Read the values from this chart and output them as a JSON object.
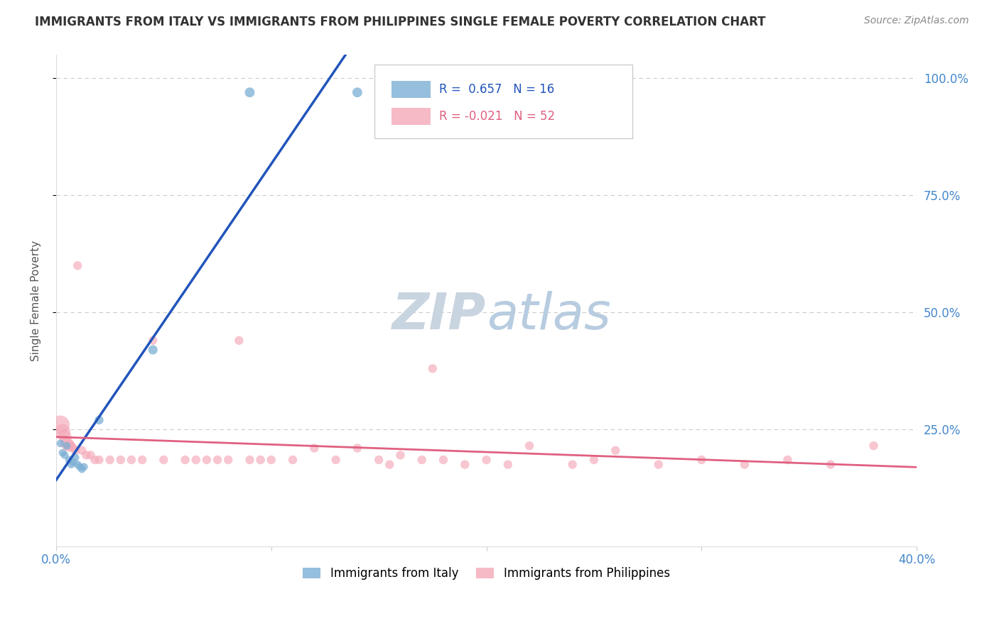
{
  "title": "IMMIGRANTS FROM ITALY VS IMMIGRANTS FROM PHILIPPINES SINGLE FEMALE POVERTY CORRELATION CHART",
  "source": "Source: ZipAtlas.com",
  "ylabel": "Single Female Poverty",
  "italy_color": "#7bafd4",
  "philippines_color": "#f4a8b8",
  "italy_line_color": "#2255bb",
  "philippines_line_color": "#e06080",
  "italy_scatter": [
    [
      0.002,
      0.22
    ],
    [
      0.003,
      0.2
    ],
    [
      0.004,
      0.195
    ],
    [
      0.005,
      0.215
    ],
    [
      0.006,
      0.185
    ],
    [
      0.007,
      0.175
    ],
    [
      0.008,
      0.18
    ],
    [
      0.009,
      0.19
    ],
    [
      0.01,
      0.175
    ],
    [
      0.011,
      0.17
    ],
    [
      0.012,
      0.165
    ],
    [
      0.013,
      0.17
    ],
    [
      0.02,
      0.27
    ],
    [
      0.045,
      0.42
    ],
    [
      0.09,
      0.97
    ],
    [
      0.14,
      0.97
    ]
  ],
  "italy_sizes": [
    60,
    60,
    60,
    60,
    60,
    60,
    60,
    60,
    60,
    60,
    60,
    60,
    80,
    90,
    100,
    100
  ],
  "philippines_scatter": [
    [
      0.002,
      0.26
    ],
    [
      0.003,
      0.245
    ],
    [
      0.004,
      0.235
    ],
    [
      0.005,
      0.22
    ],
    [
      0.006,
      0.215
    ],
    [
      0.007,
      0.215
    ],
    [
      0.008,
      0.21
    ],
    [
      0.009,
      0.205
    ],
    [
      0.01,
      0.6
    ],
    [
      0.012,
      0.205
    ],
    [
      0.014,
      0.195
    ],
    [
      0.016,
      0.195
    ],
    [
      0.018,
      0.185
    ],
    [
      0.02,
      0.185
    ],
    [
      0.025,
      0.185
    ],
    [
      0.03,
      0.185
    ],
    [
      0.035,
      0.185
    ],
    [
      0.04,
      0.185
    ],
    [
      0.045,
      0.44
    ],
    [
      0.05,
      0.185
    ],
    [
      0.06,
      0.185
    ],
    [
      0.065,
      0.185
    ],
    [
      0.07,
      0.185
    ],
    [
      0.075,
      0.185
    ],
    [
      0.08,
      0.185
    ],
    [
      0.085,
      0.44
    ],
    [
      0.09,
      0.185
    ],
    [
      0.095,
      0.185
    ],
    [
      0.1,
      0.185
    ],
    [
      0.11,
      0.185
    ],
    [
      0.12,
      0.21
    ],
    [
      0.13,
      0.185
    ],
    [
      0.14,
      0.21
    ],
    [
      0.15,
      0.185
    ],
    [
      0.155,
      0.175
    ],
    [
      0.16,
      0.195
    ],
    [
      0.17,
      0.185
    ],
    [
      0.175,
      0.38
    ],
    [
      0.18,
      0.185
    ],
    [
      0.19,
      0.175
    ],
    [
      0.2,
      0.185
    ],
    [
      0.21,
      0.175
    ],
    [
      0.22,
      0.215
    ],
    [
      0.24,
      0.175
    ],
    [
      0.25,
      0.185
    ],
    [
      0.26,
      0.205
    ],
    [
      0.28,
      0.175
    ],
    [
      0.3,
      0.185
    ],
    [
      0.32,
      0.175
    ],
    [
      0.34,
      0.185
    ],
    [
      0.36,
      0.175
    ],
    [
      0.38,
      0.215
    ]
  ],
  "philippines_sizes": [
    350,
    250,
    180,
    180,
    150,
    80,
    80,
    80,
    80,
    80,
    80,
    80,
    80,
    80,
    80,
    80,
    80,
    80,
    80,
    80,
    80,
    80,
    80,
    80,
    80,
    80,
    80,
    80,
    80,
    80,
    80,
    80,
    80,
    80,
    80,
    80,
    80,
    80,
    80,
    80,
    80,
    80,
    80,
    80,
    80,
    80,
    80,
    80,
    80,
    80,
    80,
    80
  ],
  "xlim": [
    0.0,
    0.4
  ],
  "ylim": [
    0.0,
    1.05
  ],
  "bg_color": "#ffffff",
  "bottom_legend_italy": "Immigrants from Italy",
  "bottom_legend_philippines": "Immigrants from Philippines"
}
